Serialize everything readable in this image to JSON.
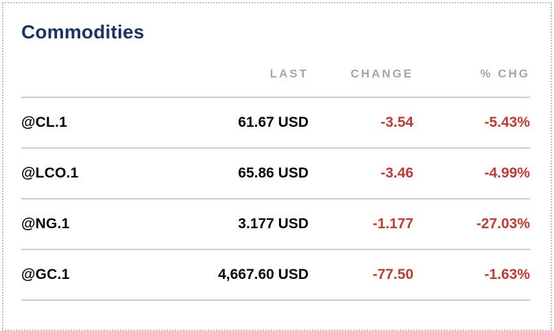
{
  "module": {
    "title": "Commodities"
  },
  "table": {
    "headers": {
      "last": "LAST",
      "change": "CHANGE",
      "pct_chg": "% CHG"
    },
    "rows": [
      {
        "symbol": "@CL.1",
        "last": "61.67 USD",
        "change": "-3.54",
        "pct_chg": "-5.43%"
      },
      {
        "symbol": "@LCO.1",
        "last": "65.86 USD",
        "change": "-3.46",
        "pct_chg": "-4.99%"
      },
      {
        "symbol": "@NG.1",
        "last": "3.177 USD",
        "change": "-1.177",
        "pct_chg": "-27.03%"
      },
      {
        "symbol": "@GC.1",
        "last": "4,667.60 USD",
        "change": "-77.50",
        "pct_chg": "-1.63%"
      }
    ]
  },
  "colors": {
    "title_navy": "#1b3264",
    "header_gray": "#a5a5a5",
    "negative_red": "#c23b33",
    "value_black": "#050505",
    "divider_gray": "#cbcbcb",
    "card_border": "#b7bec9"
  }
}
